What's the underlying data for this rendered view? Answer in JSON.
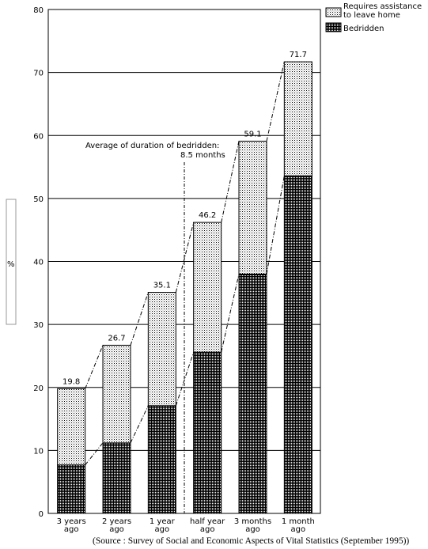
{
  "chart_data": {
    "type": "bar",
    "stacked": true,
    "categories": [
      [
        "3 years",
        "ago"
      ],
      [
        "2 years",
        "ago"
      ],
      [
        "1 year",
        "ago"
      ],
      [
        "half year",
        "ago"
      ],
      [
        "3 months",
        "ago"
      ],
      [
        "1 month",
        "ago"
      ]
    ],
    "series": [
      {
        "name": "Bedridden",
        "values": [
          7.7,
          11.2,
          17.1,
          25.6,
          38.0,
          53.6
        ],
        "color": "#777777"
      },
      {
        "name": "Requires assistance to leave home",
        "values": [
          12.1,
          15.5,
          18.0,
          20.6,
          21.1,
          18.1
        ],
        "color": "#dddddd"
      }
    ],
    "totals": [
      "19.8",
      "26.7",
      "35.1",
      "46.2",
      "59.1",
      "71.7"
    ],
    "legend": {
      "placement": "top-right",
      "items": [
        {
          "lines": [
            "Requires assistance",
            "to leave home"
          ],
          "series": "Requires assistance to leave home"
        },
        {
          "lines": [
            "Bedridden"
          ],
          "series": "Bedridden"
        }
      ]
    },
    "ylabel": "%",
    "ylim": [
      0,
      80
    ],
    "yticks": [
      0,
      10,
      20,
      30,
      40,
      50,
      60,
      70,
      80
    ],
    "grid": true,
    "annotation": {
      "lines": [
        "Average of duration of bedridden:",
        "8.5 months"
      ]
    },
    "source": "(Source : Survey of Social and Economic Aspects of Vital Statistics (September 1995))"
  }
}
